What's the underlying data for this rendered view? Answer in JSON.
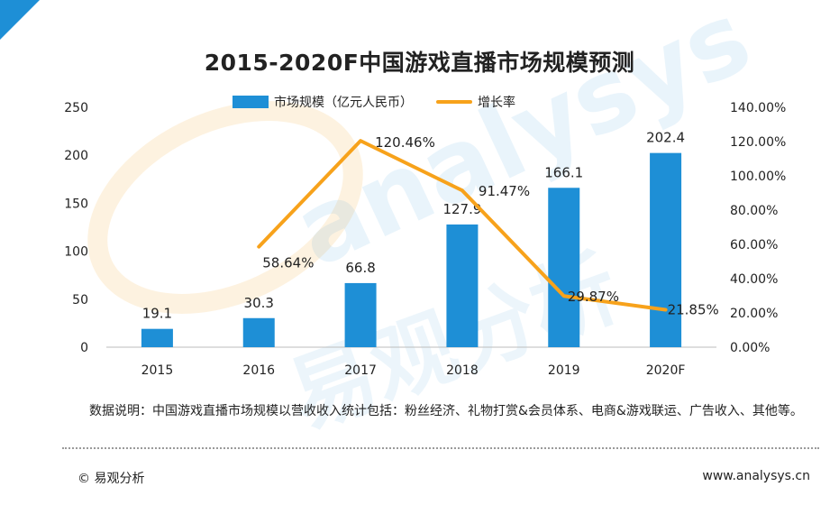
{
  "title": "2015-2020F中国游戏直播市场规模预测",
  "legend": {
    "bar_label": "市场规模（亿元人民币）",
    "line_label": "增长率"
  },
  "colors": {
    "bar": "#1e8fd6",
    "line": "#f7a21b",
    "accent": "#1e8fd6"
  },
  "watermark": {
    "text": "analysys",
    "text_cn": "易观分析"
  },
  "chart_data": {
    "type": "bar",
    "title": "2015-2020F中国游戏直播市场规模预测",
    "categories": [
      "2015",
      "2016",
      "2017",
      "2018",
      "2019",
      "2020F"
    ],
    "series": [
      {
        "name": "市场规模（亿元人民币）",
        "type": "bar",
        "axis": "left",
        "values": [
          19.1,
          30.3,
          66.8,
          127.9,
          166.1,
          202.4
        ],
        "labels": [
          "19.1",
          "30.3",
          "66.8",
          "127.9",
          "166.1",
          "202.4"
        ]
      },
      {
        "name": "增长率",
        "type": "line",
        "axis": "right",
        "values": [
          null,
          58.64,
          120.46,
          91.47,
          29.87,
          21.85
        ],
        "labels": [
          "",
          "58.64%",
          "120.46%",
          "91.47%",
          "29.87%",
          "21.85%"
        ]
      }
    ],
    "ylim_left": [
      0,
      250
    ],
    "yticks_left": [
      "0",
      "50",
      "100",
      "150",
      "200",
      "250"
    ],
    "ylim_right": [
      0,
      140
    ],
    "yticks_right": [
      "0.00%",
      "20.00%",
      "40.00%",
      "60.00%",
      "80.00%",
      "100.00%",
      "120.00%",
      "140.00%"
    ],
    "grid": false,
    "legend_position": "top-center"
  },
  "note": "数据说明：中国游戏直播市场规模以营收收入统计包括：粉丝经济、礼物打赏&会员体系、电商&游戏联运、广告收入、其他等。",
  "footer": {
    "copyright": "© 易观分析",
    "website": "www.analysys.cn"
  }
}
